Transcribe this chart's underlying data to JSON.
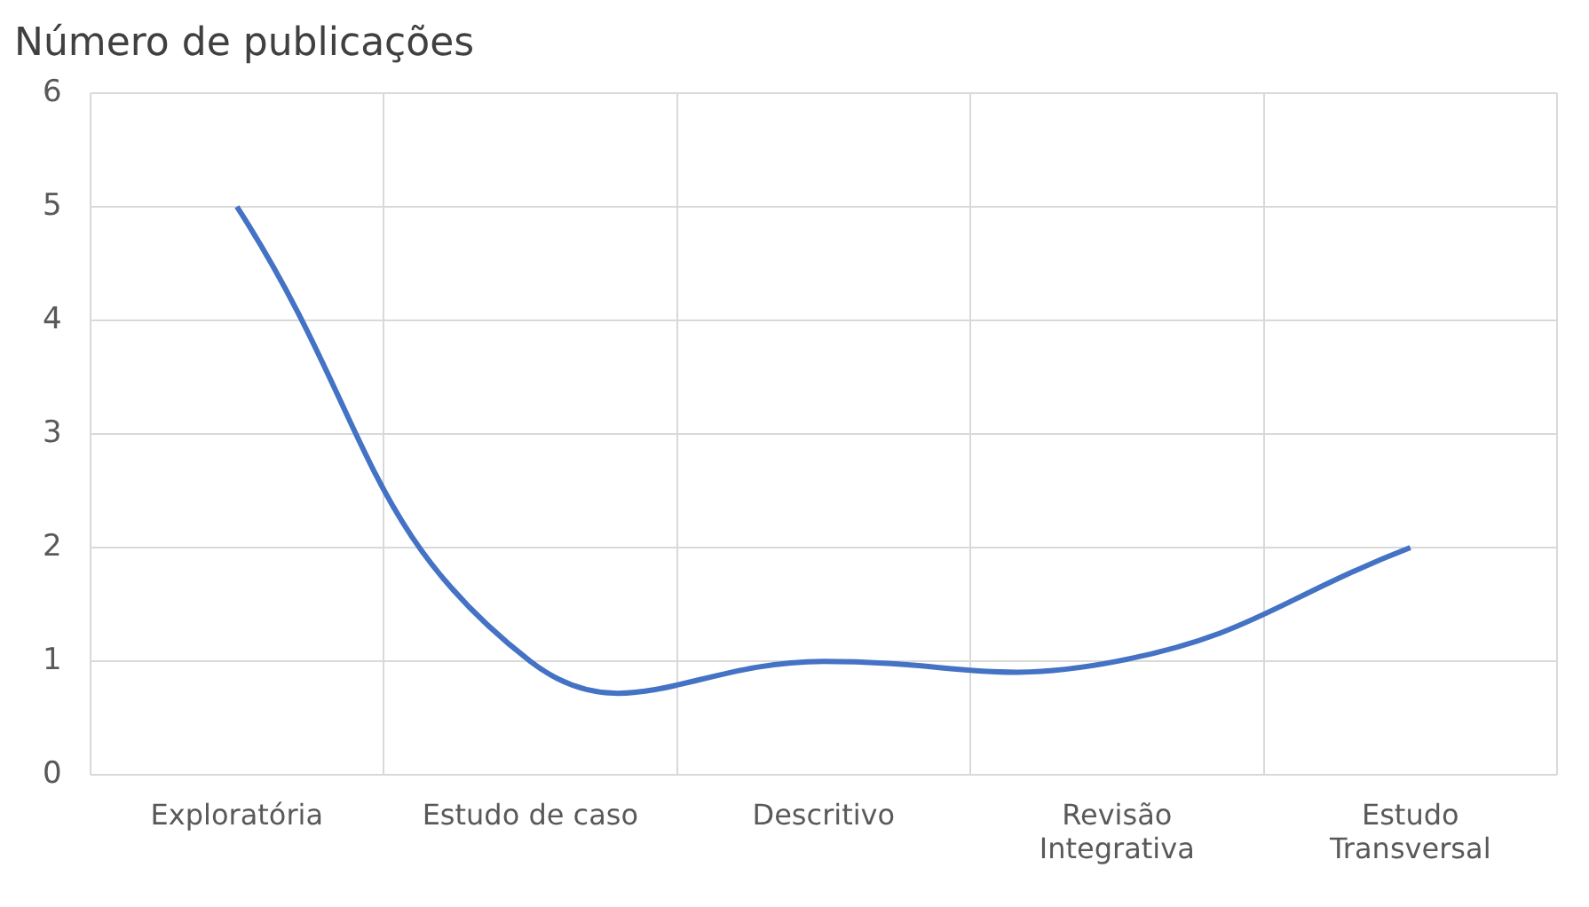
{
  "chart_data": {
    "type": "line",
    "ylabel": "Número de publicações",
    "categories": [
      "Exploratória",
      "Estudo de caso",
      "Descritivo",
      "Revisão Integrativa",
      "Estudo Transversal"
    ],
    "series": [
      {
        "color": "#4472c4",
        "values": [
          5,
          1,
          1,
          1,
          2
        ]
      }
    ],
    "ylim": [
      0,
      6
    ],
    "yticks": [
      0,
      1,
      2,
      3,
      4,
      5,
      6
    ],
    "grid": true,
    "legend": false,
    "marker": "none",
    "line_style": "solid"
  }
}
